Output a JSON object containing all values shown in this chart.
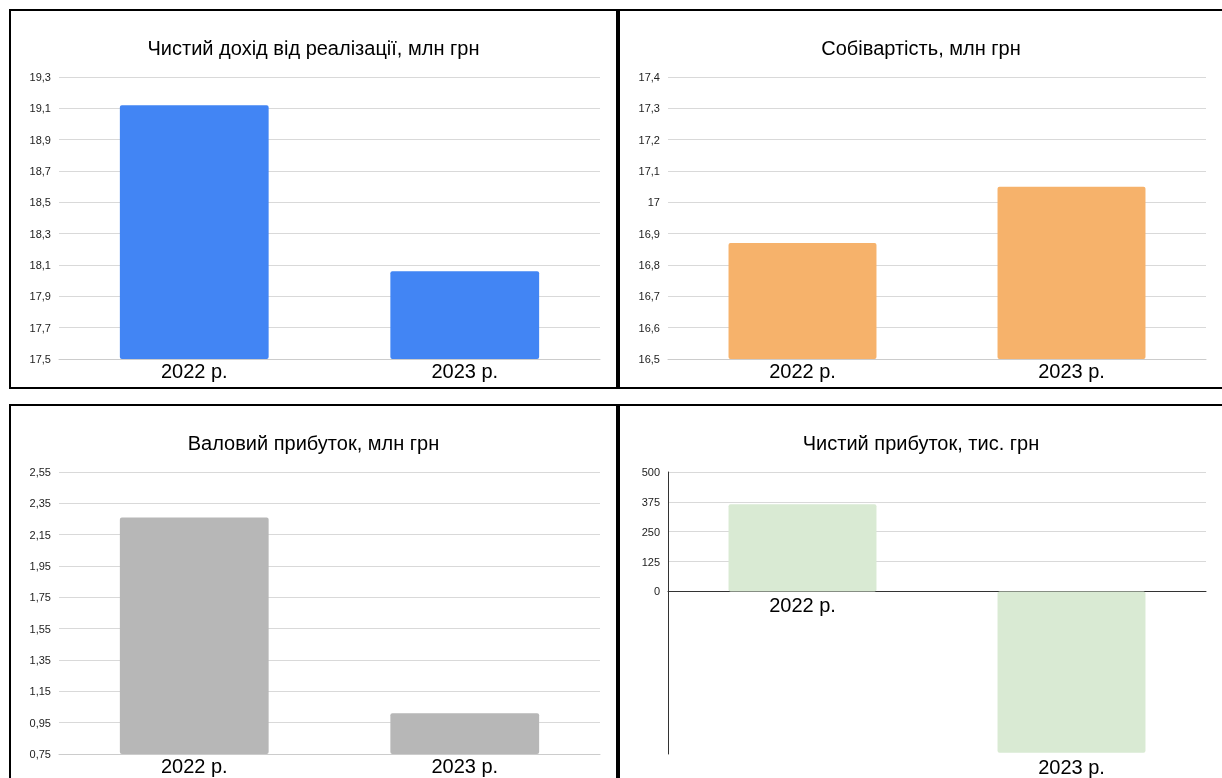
{
  "chart_data": [
    {
      "type": "bar",
      "title": "Чистий дохід від реалізації, млн грн",
      "categories": [
        "2022 р.",
        "2023 р."
      ],
      "values": [
        19.12,
        18.06
      ],
      "color": "#4285f4",
      "ylim": [
        17.5,
        19.3
      ],
      "yticks": [
        {
          "value": 17.5,
          "label": "17,5"
        },
        {
          "value": 17.7,
          "label": "17,7"
        },
        {
          "value": 17.9,
          "label": "17,9"
        },
        {
          "value": 18.1,
          "label": "18,1"
        },
        {
          "value": 18.3,
          "label": "18,3"
        },
        {
          "value": 18.5,
          "label": "18,5"
        },
        {
          "value": 18.7,
          "label": "18,7"
        },
        {
          "value": 18.9,
          "label": "18,9"
        },
        {
          "value": 19.1,
          "label": "19,1"
        },
        {
          "value": 19.3,
          "label": "19,3"
        }
      ],
      "grid": "y"
    },
    {
      "type": "bar",
      "title": "Собівартість, млн грн",
      "categories": [
        "2022 р.",
        "2023 р."
      ],
      "values": [
        16.87,
        17.05
      ],
      "color": "#f6b26b",
      "ylim": [
        16.5,
        17.4
      ],
      "yticks": [
        {
          "value": 16.5,
          "label": "16,5"
        },
        {
          "value": 16.6,
          "label": "16,6"
        },
        {
          "value": 16.7,
          "label": "16,7"
        },
        {
          "value": 16.8,
          "label": "16,8"
        },
        {
          "value": 16.9,
          "label": "16,9"
        },
        17,
        {
          "value": 17.1,
          "label": "17,1"
        },
        {
          "value": 17.2,
          "label": "17,2"
        },
        {
          "value": 17.3,
          "label": "17,3"
        },
        {
          "value": 17.4,
          "label": "17,4"
        }
      ],
      "grid": "y"
    },
    {
      "type": "bar",
      "title": "Валовий прибуток, млн грн",
      "categories": [
        "2022 р.",
        "2023 р."
      ],
      "values": [
        2.26,
        1.01
      ],
      "color": "#b7b7b7",
      "ylim": [
        0.75,
        2.55
      ],
      "yticks": [
        {
          "value": 0.75,
          "label": "0,75"
        },
        {
          "value": 0.95,
          "label": "0,95"
        },
        {
          "value": 1.15,
          "label": "1,15"
        },
        {
          "value": 1.35,
          "label": "1,35"
        },
        {
          "value": 1.55,
          "label": "1,55"
        },
        {
          "value": 1.75,
          "label": "1,75"
        },
        {
          "value": 1.95,
          "label": "1,95"
        },
        {
          "value": 2.15,
          "label": "2,15"
        },
        {
          "value": 2.35,
          "label": "2,35"
        },
        {
          "value": 2.55,
          "label": "2,55"
        }
      ],
      "grid": "y"
    },
    {
      "type": "bar",
      "title": "Чистий прибуток, тис. грн",
      "categories": [
        "2022 р.",
        "2023 р."
      ],
      "values": [
        365,
        -675
      ],
      "color": "#d9ead3",
      "ylim": [
        -680,
        500
      ],
      "yticks": [
        0,
        125,
        250,
        375,
        500
      ],
      "grid": "y"
    }
  ]
}
